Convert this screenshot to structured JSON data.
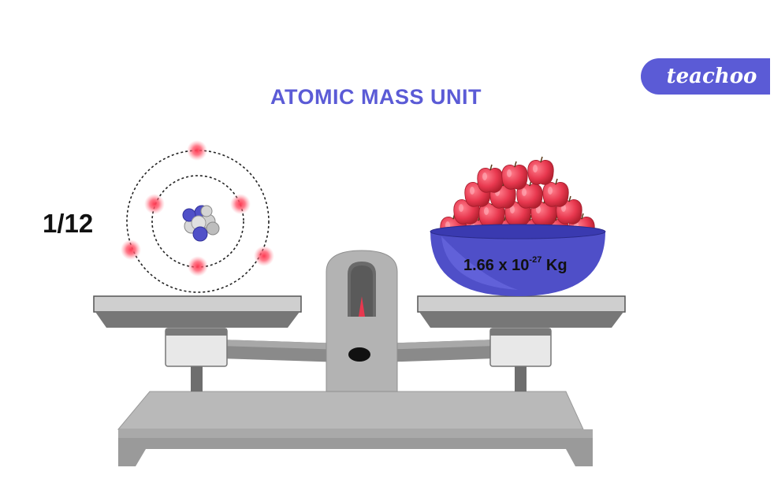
{
  "title": "ATOMIC MASS UNIT",
  "brand": "teachoo",
  "fraction_label": "1/12",
  "mass": {
    "base": "1.66 x 10",
    "exponent": "-27",
    "unit": "Kg"
  },
  "colors": {
    "accent": "#5b5bd6",
    "scale_light": "#c8c8c8",
    "scale_dark": "#7a7a7a",
    "apple": "#e8384f",
    "bowl": "#4f4fc8",
    "electron": "#ff5a6e"
  },
  "icons": [
    "balance-scale-icon",
    "atom-icon",
    "apple-bowl-icon"
  ]
}
